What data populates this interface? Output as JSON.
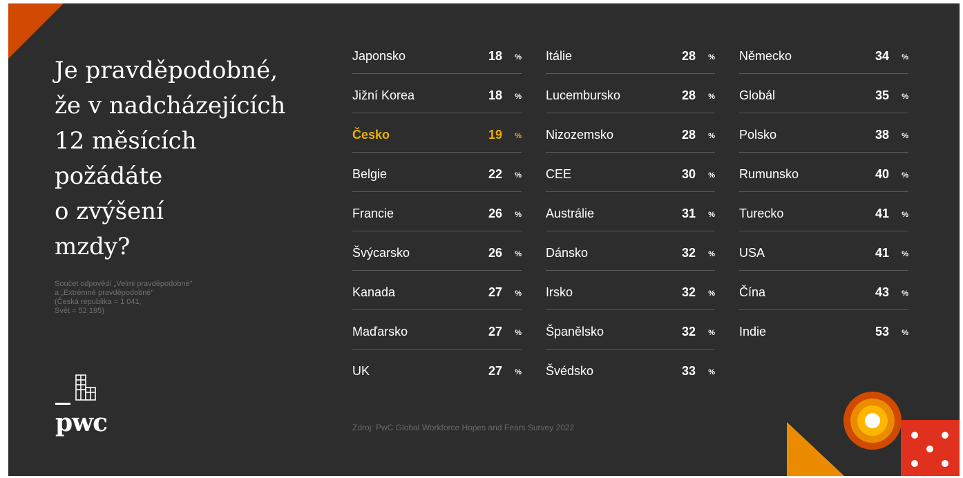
{
  "heading": "Je pravděpodobné,\nže v nadcházejících\n12 měsících\npožádáte\no zvýšení\nmzdy?",
  "note": "Součet odpovědí „Velmi pravděpodobné\"\na „Extrémně pravděpodobné\"\n(Česká republika = 1 041,\nSvět = 52 195)",
  "logo_text": "pwc",
  "percent_sign": "%",
  "source": "Zdroj: PwC Global Workforce Hopes and Fears Survey 2022",
  "highlight_color": "#e8b000",
  "columns": [
    [
      {
        "name": "Japonsko",
        "value": "18"
      },
      {
        "name": "Jižní Korea",
        "value": "18"
      },
      {
        "name": "Česko",
        "value": "19",
        "highlight": true
      },
      {
        "name": "Belgie",
        "value": "22"
      },
      {
        "name": "Francie",
        "value": "26"
      },
      {
        "name": "Švýcarsko",
        "value": "26"
      },
      {
        "name": "Kanada",
        "value": "27"
      },
      {
        "name": "Maďarsko",
        "value": "27"
      },
      {
        "name": "UK",
        "value": "27"
      }
    ],
    [
      {
        "name": "Itálie",
        "value": "28"
      },
      {
        "name": "Lucembursko",
        "value": "28"
      },
      {
        "name": "Nizozemsko",
        "value": "28"
      },
      {
        "name": "CEE",
        "value": "30"
      },
      {
        "name": "Austrálie",
        "value": "31"
      },
      {
        "name": "Dánsko",
        "value": "32"
      },
      {
        "name": "Irsko",
        "value": "32"
      },
      {
        "name": "Španělsko",
        "value": "32"
      },
      {
        "name": "Švédsko",
        "value": "33"
      }
    ],
    [
      {
        "name": "Německo",
        "value": "34"
      },
      {
        "name": "Globál",
        "value": "35"
      },
      {
        "name": "Polsko",
        "value": "38"
      },
      {
        "name": "Rumunsko",
        "value": "40"
      },
      {
        "name": "Turecko",
        "value": "41"
      },
      {
        "name": "USA",
        "value": "41"
      },
      {
        "name": "Čína",
        "value": "43"
      },
      {
        "name": "Indie",
        "value": "53"
      }
    ]
  ]
}
